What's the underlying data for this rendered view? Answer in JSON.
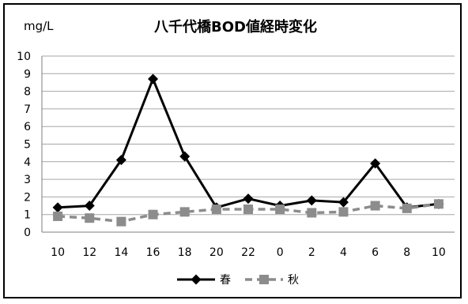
{
  "chart_data": {
    "type": "line",
    "title": "八千代橋BOD値経時変化",
    "unit_label": "mg/L",
    "categories": [
      "10",
      "12",
      "14",
      "16",
      "18",
      "20",
      "22",
      "0",
      "2",
      "4",
      "6",
      "8",
      "10"
    ],
    "ylim": [
      0,
      10
    ],
    "yticks": [
      "0",
      "1",
      "2",
      "3",
      "4",
      "5",
      "6",
      "7",
      "8",
      "9",
      "10"
    ],
    "grid": true,
    "legend_position": "bottom",
    "series": [
      {
        "name": "春",
        "values": [
          1.4,
          1.5,
          4.1,
          8.7,
          4.3,
          1.4,
          1.9,
          1.5,
          1.8,
          1.7,
          3.9,
          1.4,
          1.6
        ],
        "color": "#000000",
        "style": "solid",
        "marker": "diamond"
      },
      {
        "name": "秋",
        "values": [
          0.9,
          0.8,
          0.6,
          1.0,
          1.15,
          1.3,
          1.3,
          1.3,
          1.1,
          1.15,
          1.5,
          1.35,
          1.6
        ],
        "color": "#8c8c8c",
        "style": "dashed",
        "marker": "square"
      }
    ]
  }
}
